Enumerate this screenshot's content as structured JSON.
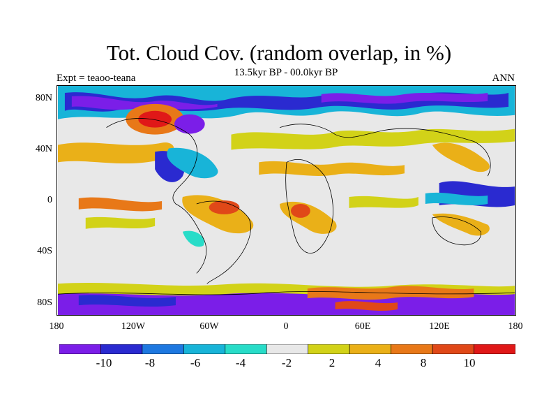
{
  "header": {
    "title": "Tot. Cloud Cov. (random overlap, in %)",
    "subtitle": "13.5kyr BP - 00.0kyr BP",
    "left_label": "Expt = teaoo-teana",
    "right_label": "ANN"
  },
  "axes": {
    "y_ticks": [
      "80N",
      "40N",
      "0",
      "40S",
      "80S"
    ],
    "x_ticks": [
      "180",
      "120W",
      "60W",
      "0",
      "60E",
      "120E",
      "180"
    ]
  },
  "colorbar": {
    "labels": [
      "-10",
      "-8",
      "-6",
      "-4",
      "-2",
      "2",
      "4",
      "8",
      "10"
    ],
    "colors": [
      "#7b1ee8",
      "#2a2ad0",
      "#1e78e0",
      "#18b4d8",
      "#28dcc8",
      "#e8e8e8",
      "#d2d218",
      "#eab018",
      "#e87818",
      "#e04818",
      "#e01818"
    ]
  },
  "map": {
    "background": "#e8e8e8"
  }
}
